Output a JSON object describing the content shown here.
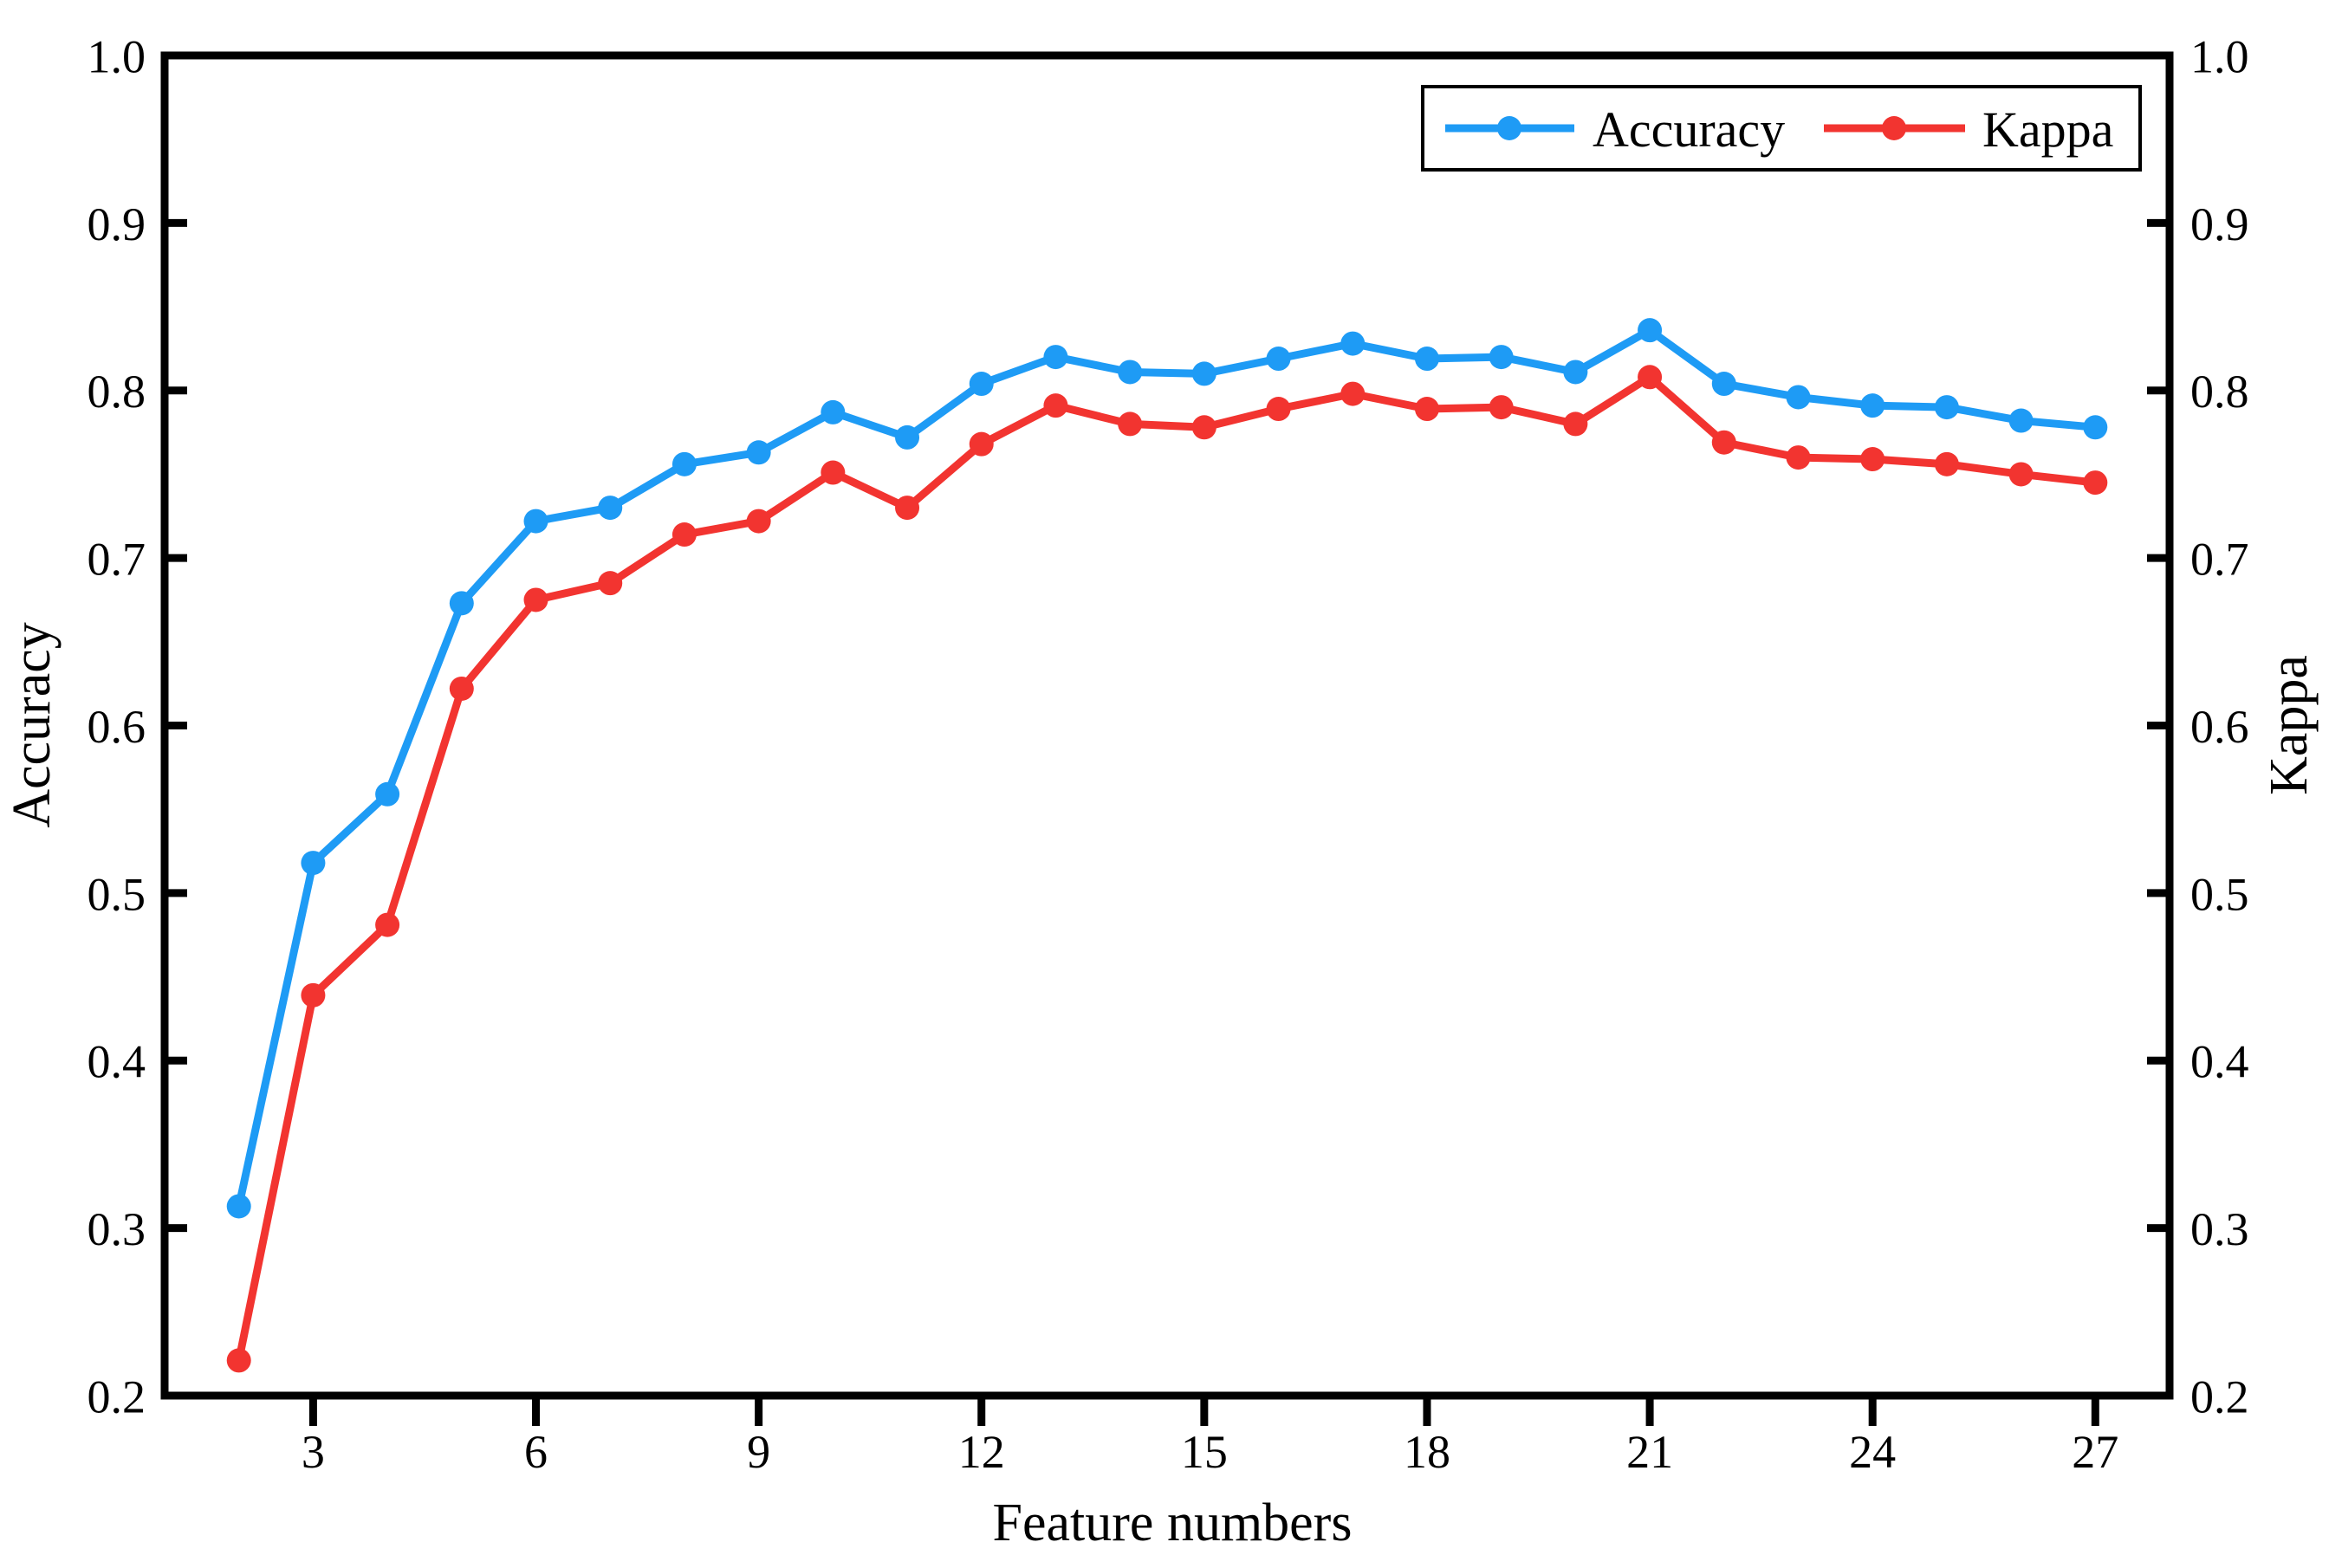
{
  "figure": {
    "background": "#ffffff",
    "frame_color": "#000000",
    "text_color": "#000000"
  },
  "axes": {
    "x_title": "Feature numbers",
    "y_left_title": "Accuracy",
    "y_right_title": "Kappa",
    "x_tick_labels": [
      "3",
      "6",
      "9",
      "12",
      "15",
      "18",
      "21",
      "24",
      "27"
    ],
    "x_tick_values": [
      3,
      6,
      9,
      12,
      15,
      18,
      21,
      24,
      27
    ],
    "y_tick_labels": [
      "0.2",
      "0.3",
      "0.4",
      "0.5",
      "0.6",
      "0.7",
      "0.8",
      "0.9",
      "1.0"
    ],
    "y_tick_values": [
      0.2,
      0.3,
      0.4,
      0.5,
      0.6,
      0.7,
      0.8,
      0.9,
      1.0
    ]
  },
  "legend": {
    "items": [
      {
        "label": "Accuracy",
        "color": "#1e9bf5"
      },
      {
        "label": "Kappa",
        "color": "#f23430"
      }
    ]
  },
  "chart_data": {
    "type": "line",
    "title": "",
    "xlabel": "Feature numbers",
    "ylabel_left": "Accuracy",
    "ylabel_right": "Kappa",
    "xlim": [
      1,
      28
    ],
    "ylim": [
      0.2,
      1.0
    ],
    "grid": false,
    "legend_position": "top-right",
    "x": [
      2,
      3,
      4,
      5,
      6,
      7,
      8,
      9,
      10,
      11,
      12,
      13,
      14,
      15,
      16,
      17,
      18,
      19,
      20,
      21,
      22,
      23,
      24,
      25,
      26,
      27
    ],
    "series": [
      {
        "name": "Accuracy",
        "axis": "left",
        "color": "#1e9bf5",
        "values": [
          0.313,
          0.518,
          0.559,
          0.673,
          0.722,
          0.73,
          0.756,
          0.763,
          0.787,
          0.772,
          0.804,
          0.82,
          0.811,
          0.81,
          0.819,
          0.828,
          0.819,
          0.82,
          0.811,
          0.836,
          0.804,
          0.796,
          0.791,
          0.79,
          0.782,
          0.778
        ]
      },
      {
        "name": "Kappa",
        "axis": "right",
        "color": "#f23430",
        "values": [
          0.221,
          0.439,
          0.481,
          0.622,
          0.675,
          0.685,
          0.714,
          0.722,
          0.751,
          0.73,
          0.768,
          0.791,
          0.78,
          0.778,
          0.789,
          0.798,
          0.789,
          0.79,
          0.78,
          0.808,
          0.769,
          0.76,
          0.759,
          0.756,
          0.75,
          0.745
        ]
      }
    ]
  }
}
